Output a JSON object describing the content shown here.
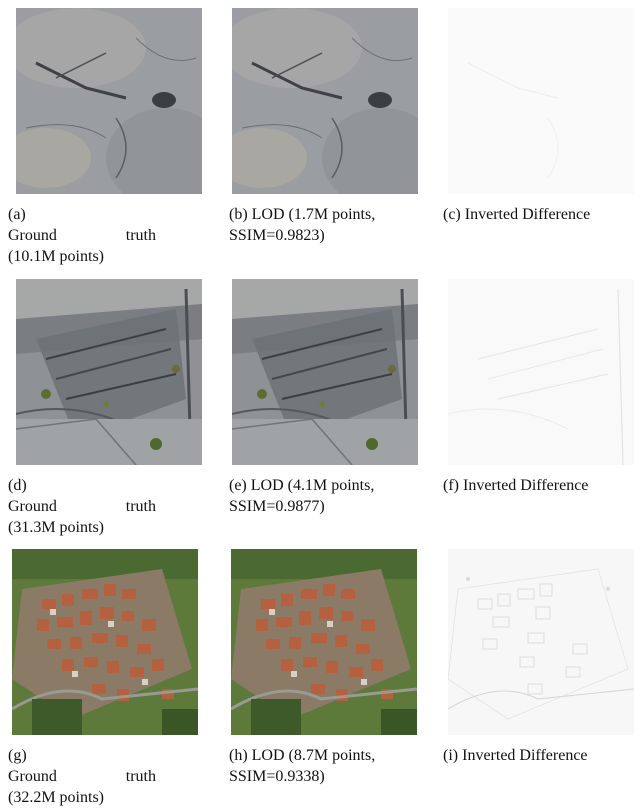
{
  "rows": [
    {
      "scene": "rock-surface-1",
      "panels": [
        {
          "label": "(a)",
          "title": "Ground truth",
          "line2": "(10.1M points)"
        },
        {
          "label": "(b)",
          "title": "LOD (1.7M points,",
          "line2": "SSIM=0.9823)"
        },
        {
          "label": "(c)",
          "title": "Inverted Difference",
          "line2": ""
        }
      ]
    },
    {
      "scene": "rock-surface-2",
      "panels": [
        {
          "label": "(d)",
          "title": "Ground truth",
          "line2": "(31.3M points)"
        },
        {
          "label": "(e)",
          "title": "LOD (4.1M points,",
          "line2": "SSIM=0.9877)"
        },
        {
          "label": "(f)",
          "title": "Inverted Difference",
          "line2": ""
        }
      ]
    },
    {
      "scene": "village-aerial",
      "panels": [
        {
          "label": "(g)",
          "title": "Ground truth",
          "line2": "(32.2M points)"
        },
        {
          "label": "(h)",
          "title": "LOD (8.7M points,",
          "line2": "SSIM=0.9338)"
        },
        {
          "label": "(i)",
          "title": "Inverted Difference",
          "line2": ""
        }
      ]
    }
  ],
  "colors": {
    "rock_base": "#9a9ea2",
    "rock_dark": "#55595e",
    "rock_light": "#c4c3bd",
    "grass": "#4d6a2c",
    "roof": "#b5603f",
    "diff_bg": "#f8f8f8",
    "diff_line": "#c8c8c8"
  }
}
